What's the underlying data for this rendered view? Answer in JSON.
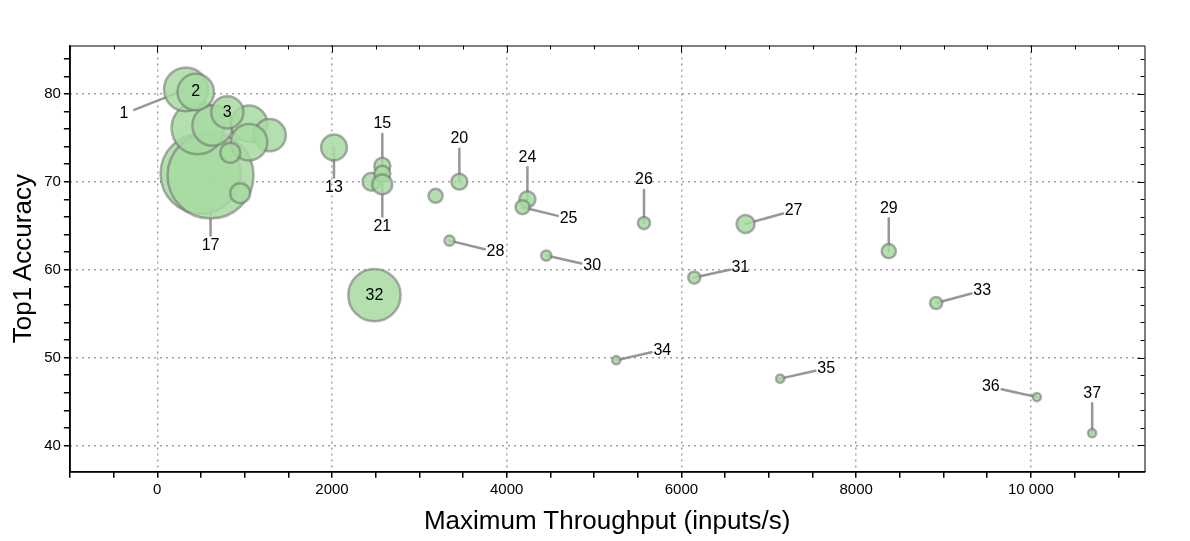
{
  "chart_data": {
    "type": "bubble",
    "xlabel": "Maximum Throughput (inputs/s)",
    "ylabel": "Top1 Accuracy",
    "xlim": [
      -1000,
      11300
    ],
    "ylim": [
      37,
      85.5
    ],
    "xticks": [
      {
        "value": -1000,
        "label": null
      },
      {
        "value": -500,
        "label": null
      },
      0,
      {
        "value": 500,
        "label": null
      },
      {
        "value": 1000,
        "label": null
      },
      {
        "value": 1500,
        "label": null
      },
      2000,
      {
        "value": 2500,
        "label": null
      },
      {
        "value": 3000,
        "label": null
      },
      {
        "value": 3500,
        "label": null
      },
      4000,
      {
        "value": 4500,
        "label": null
      },
      {
        "value": 5000,
        "label": null
      },
      {
        "value": 5500,
        "label": null
      },
      6000,
      {
        "value": 6500,
        "label": null
      },
      {
        "value": 7000,
        "label": null
      },
      {
        "value": 7500,
        "label": null
      },
      8000,
      {
        "value": 8500,
        "label": null
      },
      {
        "value": 9000,
        "label": null
      },
      {
        "value": 9500,
        "label": null
      },
      {
        "value": 10000,
        "label": "10 000"
      },
      {
        "value": 10500,
        "label": null
      },
      {
        "value": 11000,
        "label": null
      }
    ],
    "yticks": [
      40,
      {
        "value": 42,
        "label": null
      },
      {
        "value": 44,
        "label": null
      },
      {
        "value": 46,
        "label": null
      },
      {
        "value": 48,
        "label": null
      },
      50,
      {
        "value": 52,
        "label": null
      },
      {
        "value": 54,
        "label": null
      },
      {
        "value": 56,
        "label": null
      },
      {
        "value": 58,
        "label": null
      },
      60,
      {
        "value": 62,
        "label": null
      },
      {
        "value": 64,
        "label": null
      },
      {
        "value": 66,
        "label": null
      },
      {
        "value": 68,
        "label": null
      },
      70,
      {
        "value": 72,
        "label": null
      },
      {
        "value": 74,
        "label": null
      },
      {
        "value": 76,
        "label": null
      },
      {
        "value": 78,
        "label": null
      },
      80,
      {
        "value": 82,
        "label": null
      },
      {
        "value": 84,
        "label": null
      }
    ],
    "grid": true,
    "legend": false,
    "series": [
      {
        "color": "#a6dba0",
        "x": [
          497,
          610,
          463,
          633,
          328,
          441,
          1051,
          1288,
          1051,
          802,
          836,
          949,
          2023,
          2452,
          2576,
          2576,
          2576,
          3186,
          3458,
          3345,
          2486,
          4237,
          4181,
          4452,
          5571,
          6734,
          6147,
          8373,
          8915,
          5254,
          7130,
          10068,
          10701
        ],
        "values": [
          70.9,
          70.7,
          76.1,
          76.4,
          80.5,
          80.2,
          76.6,
          75.3,
          74.5,
          77.9,
          73.3,
          68.7,
          73.9,
          70.0,
          71.8,
          70.9,
          69.7,
          68.4,
          70.0,
          63.3,
          57.1,
          68.0,
          67.1,
          61.6,
          65.3,
          65.2,
          59.1,
          62.1,
          56.2,
          49.7,
          47.6,
          45.5,
          41.4
        ],
        "sizes": [
          0.87,
          1,
          0.37,
          0.22,
          0.26,
          0.18,
          0.18,
          0.14,
          0.18,
          0.14,
          0.054,
          0.054,
          0.09,
          0.044,
          0.035,
          0.035,
          0.054,
          0.027,
          0.035,
          0.014,
          0.37,
          0.035,
          0.027,
          0.014,
          0.02,
          0.044,
          0.02,
          0.027,
          0.02,
          0.009,
          0.009,
          0.009,
          0.009
        ]
      }
    ],
    "annotations": [
      {
        "text": "1",
        "x": 328,
        "y": 80.5
      },
      {
        "text": "2",
        "x": 441,
        "y": 80.2
      },
      {
        "text": "3",
        "x": 802,
        "y": 77.9
      },
      {
        "text": "13",
        "x": 2023,
        "y": 73.9
      },
      {
        "text": "15",
        "x": 2576,
        "y": 71.8
      },
      {
        "text": "17",
        "x": 610,
        "y": 70.7
      },
      {
        "text": "20",
        "x": 3458,
        "y": 70.0
      },
      {
        "text": "21",
        "x": 2576,
        "y": 69.7
      },
      {
        "text": "24",
        "x": 4237,
        "y": 68.0
      },
      {
        "text": "25",
        "x": 4181,
        "y": 67.1
      },
      {
        "text": "26",
        "x": 5571,
        "y": 65.3
      },
      {
        "text": "27",
        "x": 6734,
        "y": 65.2
      },
      {
        "text": "28",
        "x": 3345,
        "y": 63.3
      },
      {
        "text": "29",
        "x": 8373,
        "y": 62.1
      },
      {
        "text": "30",
        "x": 4452,
        "y": 61.6
      },
      {
        "text": "31",
        "x": 6147,
        "y": 59.1
      },
      {
        "text": "32",
        "x": 2486,
        "y": 57.1
      },
      {
        "text": "33",
        "x": 8915,
        "y": 56.2
      },
      {
        "text": "34",
        "x": 5254,
        "y": 49.7
      },
      {
        "text": "35",
        "x": 7130,
        "y": 47.6
      },
      {
        "text": "36",
        "x": 10068,
        "y": 45.5
      },
      {
        "text": "37",
        "x": 10701,
        "y": 41.4
      }
    ]
  }
}
